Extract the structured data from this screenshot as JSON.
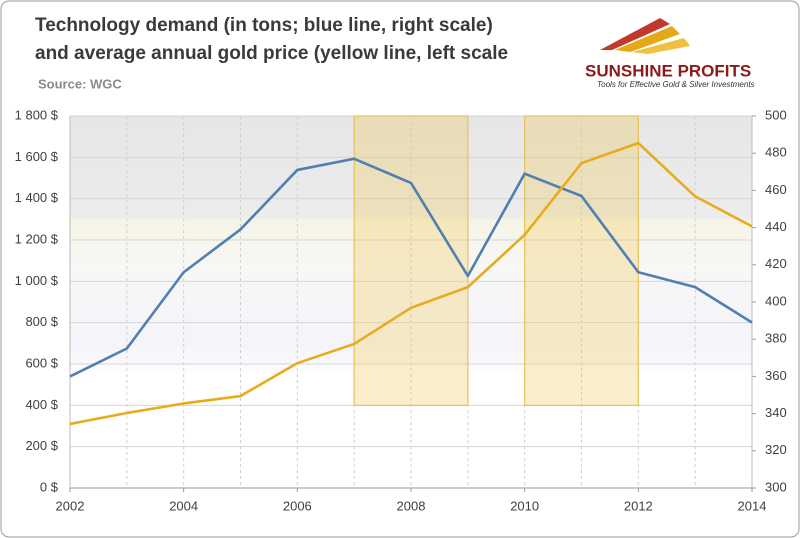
{
  "chart_data": {
    "type": "line",
    "title": [
      "Technology demand (in tons;  blue line, right scale)",
      "and average annual gold price (yellow line, left scale"
    ],
    "source": "Source: WGC",
    "brand": "SUNSHINE PROFITS",
    "tagline": "Tools for Effective Gold & Silver Investments",
    "x": [
      2002,
      2003,
      2004,
      2005,
      2006,
      2007,
      2008,
      2009,
      2010,
      2011,
      2012,
      2013,
      2014
    ],
    "xlim": [
      2002,
      2014
    ],
    "xticks": [
      2002,
      2004,
      2006,
      2008,
      2010,
      2012,
      2014
    ],
    "ylim": [
      0,
      1800
    ],
    "yticks": [
      {
        "value": 0,
        "label": "0 $"
      },
      {
        "value": 200,
        "label": "200 $"
      },
      {
        "value": 400,
        "label": "400 $"
      },
      {
        "value": 600,
        "label": "600 $"
      },
      {
        "value": 800,
        "label": "800 $"
      },
      {
        "value": 1000,
        "label": "1 000 $"
      },
      {
        "value": 1200,
        "label": "1 200 $"
      },
      {
        "value": 1400,
        "label": "1 400 $"
      },
      {
        "value": 1600,
        "label": "1 600 $"
      },
      {
        "value": 1800,
        "label": "1 800 $"
      }
    ],
    "y2lim": [
      300,
      500
    ],
    "y2ticks": [
      300,
      320,
      340,
      360,
      380,
      400,
      420,
      440,
      460,
      480,
      500
    ],
    "grid": true,
    "series": [
      {
        "name": "Technology demand",
        "color": "#4f7fb3",
        "axis": "y2",
        "values": [
          360,
          375,
          416,
          439,
          471,
          477,
          464,
          414,
          469,
          457,
          416,
          408,
          389
        ]
      },
      {
        "name": "Average annual gold price",
        "color": "#e6ac1e",
        "values": [
          310,
          363,
          409,
          445,
          604,
          697,
          872,
          972,
          1225,
          1572,
          1669,
          1411,
          1266
        ]
      }
    ],
    "highlights": [
      {
        "x": [
          2007,
          2009
        ],
        "y": [
          400,
          1800
        ]
      },
      {
        "x": [
          2010,
          2012
        ],
        "y": [
          400,
          1800
        ]
      }
    ]
  }
}
